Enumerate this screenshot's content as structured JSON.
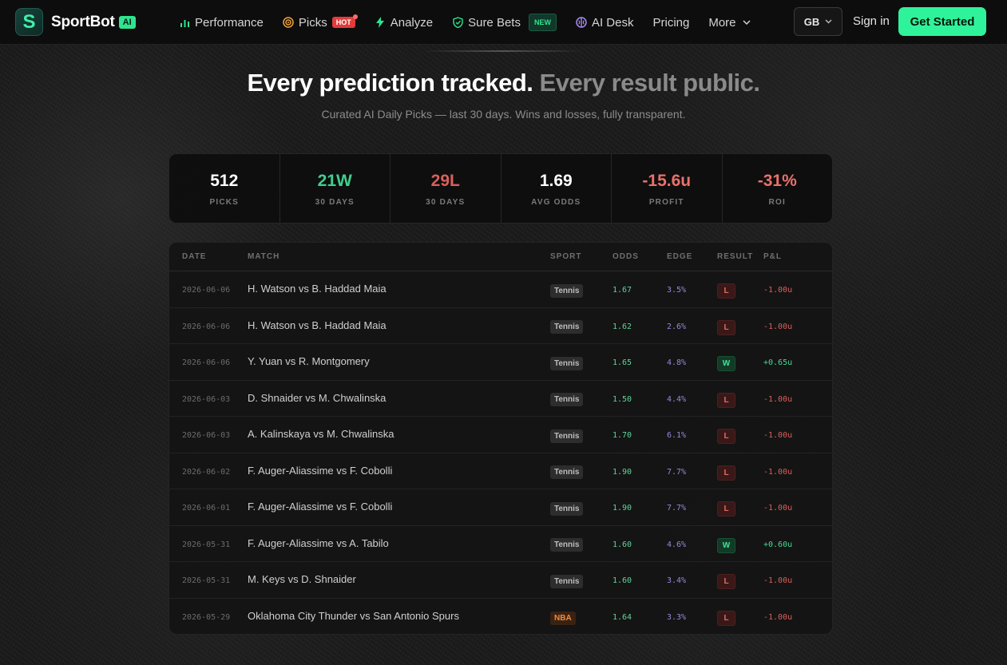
{
  "nav": {
    "brand": {
      "logo_letter": "S",
      "name": "SportBot",
      "badge": "AI"
    },
    "items": [
      {
        "label": "Performance",
        "icon": "bar-chart-icon"
      },
      {
        "label": "Picks",
        "icon": "target-icon",
        "badge": "HOT"
      },
      {
        "label": "Analyze",
        "icon": "lightning-icon"
      },
      {
        "label": "Sure Bets",
        "icon": "shield-check-icon",
        "badge": "NEW"
      },
      {
        "label": "AI Desk",
        "icon": "brain-icon"
      },
      {
        "label": "Pricing"
      },
      {
        "label": "More",
        "icon": "chevron-down-icon"
      }
    ],
    "region": "GB",
    "signin": "Sign in",
    "cta": "Get Started"
  },
  "hero": {
    "title_main": "Every prediction tracked.",
    "title_muted": "Every result public.",
    "subtitle": "Curated AI Daily Picks — last 30 days. Wins and losses, fully transparent."
  },
  "stats": [
    {
      "value": "512",
      "label": "PICKS",
      "tone": "white"
    },
    {
      "value": "21W",
      "label": "30 DAYS",
      "tone": "green"
    },
    {
      "value": "29L",
      "label": "30 DAYS",
      "tone": "red"
    },
    {
      "value": "1.69",
      "label": "AVG ODDS",
      "tone": "white"
    },
    {
      "value": "-15.6u",
      "label": "PROFIT",
      "tone": "redl"
    },
    {
      "value": "-31%",
      "label": "ROI",
      "tone": "redl"
    }
  ],
  "table": {
    "headers": {
      "date": "DATE",
      "match": "MATCH",
      "sport": "SPORT",
      "odds": "ODDS",
      "edge": "EDGE",
      "result": "RESULT",
      "pnl": "P&L"
    },
    "rows": [
      {
        "date": "2026-06-06",
        "match": "H. Watson vs B. Haddad Maia",
        "sport": "Tennis",
        "odds": "1.67",
        "edge": "3.5%",
        "result": "L",
        "pnl": "-1.00u"
      },
      {
        "date": "2026-06-06",
        "match": "H. Watson vs B. Haddad Maia",
        "sport": "Tennis",
        "odds": "1.62",
        "edge": "2.6%",
        "result": "L",
        "pnl": "-1.00u"
      },
      {
        "date": "2026-06-06",
        "match": "Y. Yuan vs R. Montgomery",
        "sport": "Tennis",
        "odds": "1.65",
        "edge": "4.8%",
        "result": "W",
        "pnl": "+0.65u"
      },
      {
        "date": "2026-06-03",
        "match": "D. Shnaider vs M. Chwalinska",
        "sport": "Tennis",
        "odds": "1.50",
        "edge": "4.4%",
        "result": "L",
        "pnl": "-1.00u"
      },
      {
        "date": "2026-06-03",
        "match": "A. Kalinskaya vs M. Chwalinska",
        "sport": "Tennis",
        "odds": "1.70",
        "edge": "6.1%",
        "result": "L",
        "pnl": "-1.00u"
      },
      {
        "date": "2026-06-02",
        "match": "F. Auger-Aliassime vs F. Cobolli",
        "sport": "Tennis",
        "odds": "1.90",
        "edge": "7.7%",
        "result": "L",
        "pnl": "-1.00u"
      },
      {
        "date": "2026-06-01",
        "match": "F. Auger-Aliassime vs F. Cobolli",
        "sport": "Tennis",
        "odds": "1.90",
        "edge": "7.7%",
        "result": "L",
        "pnl": "-1.00u"
      },
      {
        "date": "2026-05-31",
        "match": "F. Auger-Aliassime vs A. Tabilo",
        "sport": "Tennis",
        "odds": "1.60",
        "edge": "4.6%",
        "result": "W",
        "pnl": "+0.60u"
      },
      {
        "date": "2026-05-31",
        "match": "M. Keys vs D. Shnaider",
        "sport": "Tennis",
        "odds": "1.60",
        "edge": "3.4%",
        "result": "L",
        "pnl": "-1.00u"
      },
      {
        "date": "2026-05-29",
        "match": "Oklahoma City Thunder vs San Antonio Spurs",
        "sport": "NBA",
        "odds": "1.64",
        "edge": "3.3%",
        "result": "L",
        "pnl": "-1.00u"
      }
    ]
  }
}
